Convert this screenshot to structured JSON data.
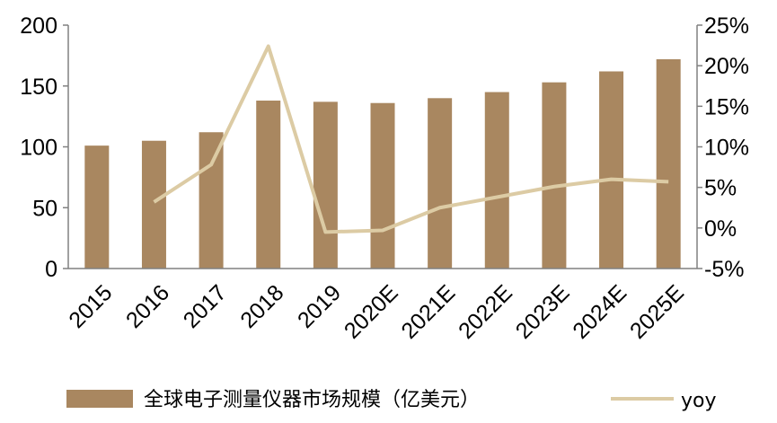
{
  "chart_data": {
    "type": "bar",
    "categories": [
      "2015",
      "2016",
      "2017",
      "2018",
      "2019",
      "2020E",
      "2021E",
      "2022E",
      "2023E",
      "2024E",
      "2025E"
    ],
    "series": [
      {
        "name": "全球电子测量仪器市场规模（亿美元）",
        "type": "bar",
        "axis": "left",
        "values": [
          101,
          105,
          112,
          138,
          137,
          136,
          140,
          145,
          153,
          162,
          172
        ]
      },
      {
        "name": "yoy",
        "type": "line",
        "axis": "right",
        "values": [
          null,
          3.2,
          7.8,
          22.4,
          -0.5,
          -0.3,
          2.5,
          3.8,
          5.1,
          6.0,
          5.7
        ]
      }
    ],
    "ylim": [
      0,
      200
    ],
    "y_ticks": [
      "0",
      "50",
      "100",
      "150",
      "200"
    ],
    "y2lim": [
      -5,
      25
    ],
    "y2_ticks": [
      "-5%",
      "0%",
      "5%",
      "10%",
      "15%",
      "20%",
      "25%"
    ],
    "grid": false,
    "legend": "bottom",
    "colors": {
      "bar": "#A98760",
      "line": "#DCCBA4",
      "axis": "#808080"
    }
  }
}
